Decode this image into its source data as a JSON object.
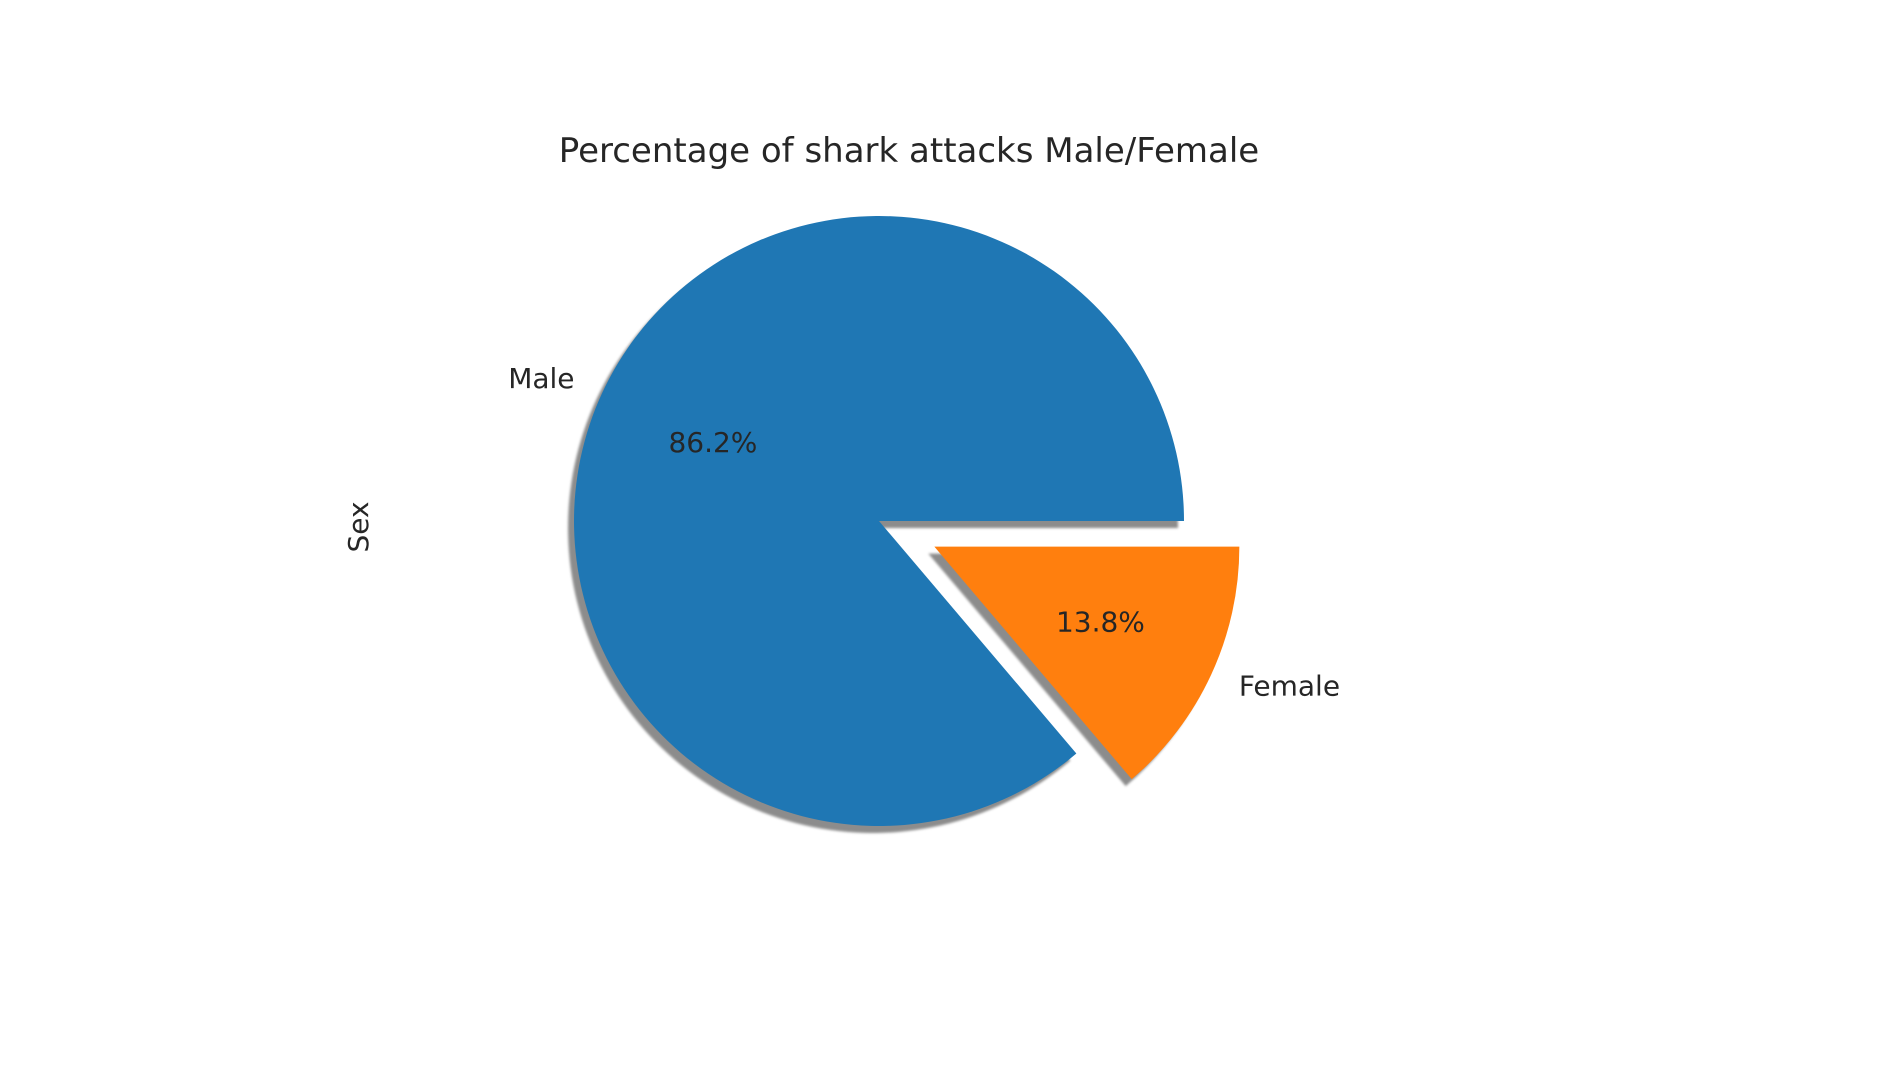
{
  "chart_data": {
    "type": "pie",
    "title": "Percentage of shark attacks Male/Female",
    "ylabel": "Sex",
    "labels": [
      "Male",
      "Female"
    ],
    "values": [
      86.2,
      13.8
    ],
    "pct_labels": [
      "86.2%",
      "13.8%"
    ],
    "colors": [
      "#1f77b4",
      "#ff7f0e"
    ],
    "explode": [
      0,
      0.2
    ],
    "shadow": true,
    "start_angle": 0
  }
}
